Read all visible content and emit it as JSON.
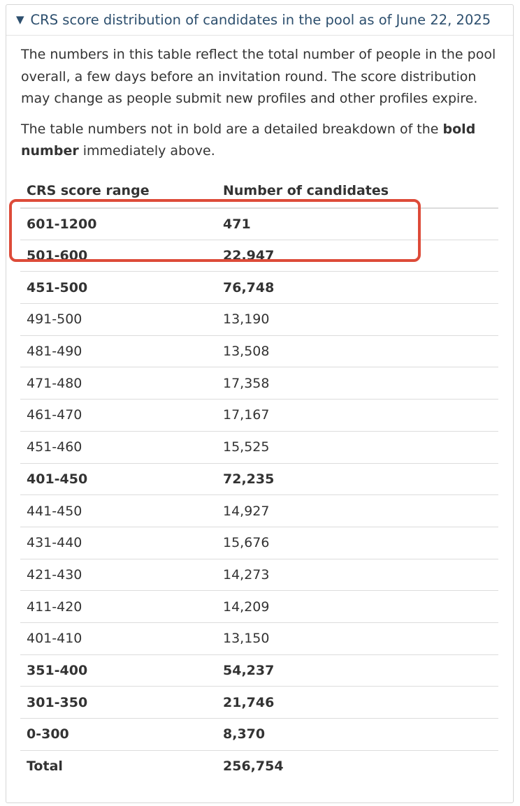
{
  "details": {
    "summary": "CRS score distribution of candidates in the pool as of June 22, 2025",
    "paragraph1": "The numbers in this table reflect the total number of people in the pool overall, a few days before an invitation round. The score distribution may change as people submit new profiles and other profiles expire.",
    "paragraph2_pre": "The table numbers not in bold are a detailed breakdown of the ",
    "paragraph2_bold": "bold number",
    "paragraph2_post": " immediately above."
  },
  "table": {
    "headers": [
      "CRS score range",
      "Number of candidates"
    ],
    "rows": [
      {
        "range": "601-1200",
        "count": "471",
        "bold": true
      },
      {
        "range": "501-600",
        "count": "22,947",
        "bold": true
      },
      {
        "range": "451-500",
        "count": "76,748",
        "bold": true
      },
      {
        "range": "491-500",
        "count": "13,190",
        "bold": false
      },
      {
        "range": "481-490",
        "count": "13,508",
        "bold": false
      },
      {
        "range": "471-480",
        "count": "17,358",
        "bold": false
      },
      {
        "range": "461-470",
        "count": "17,167",
        "bold": false
      },
      {
        "range": "451-460",
        "count": "15,525",
        "bold": false
      },
      {
        "range": "401-450",
        "count": "72,235",
        "bold": true
      },
      {
        "range": "441-450",
        "count": "14,927",
        "bold": false
      },
      {
        "range": "431-440",
        "count": "15,676",
        "bold": false
      },
      {
        "range": "421-430",
        "count": "14,273",
        "bold": false
      },
      {
        "range": "411-420",
        "count": "14,209",
        "bold": false
      },
      {
        "range": "401-410",
        "count": "13,150",
        "bold": false
      },
      {
        "range": "351-400",
        "count": "54,237",
        "bold": true
      },
      {
        "range": "301-350",
        "count": "21,746",
        "bold": true
      },
      {
        "range": "0-300",
        "count": "8,370",
        "bold": true
      }
    ],
    "total": {
      "label": "Total",
      "count": "256,754"
    }
  },
  "annotation": {
    "color": "#dd4b39"
  }
}
